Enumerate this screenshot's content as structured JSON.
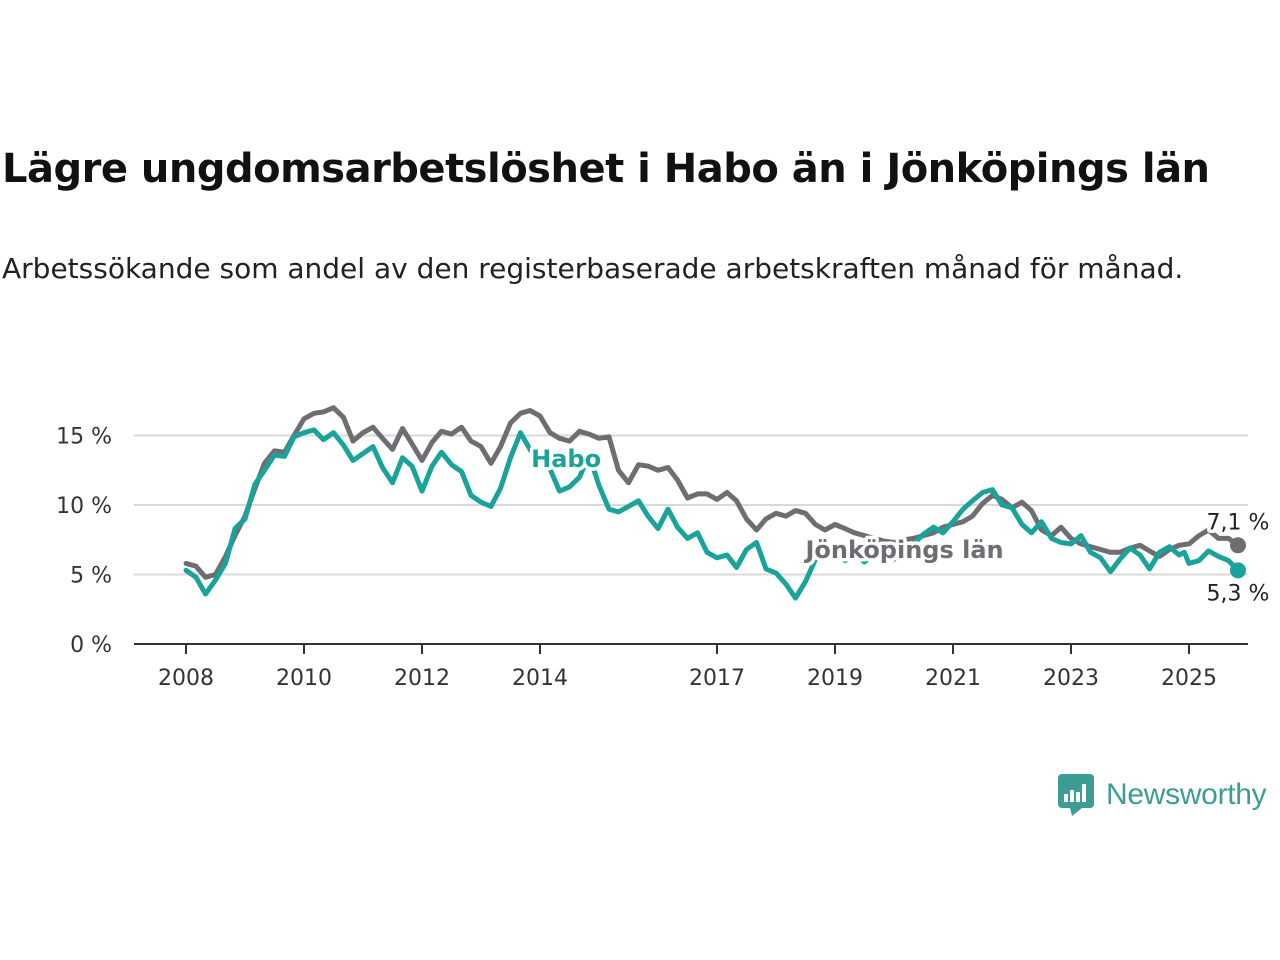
{
  "header": {
    "title": "Lägre ungdomsarbetslöshet i Habo än i Jönköpings län",
    "subtitle": "Arbetssökande som andel av den registerbaserade arbetskraften månad för månad."
  },
  "brand": {
    "name": "Newsworthy",
    "color": "#3d9c94",
    "icon": "newsworthy-logo-icon"
  },
  "chart_data": {
    "type": "line",
    "title": "Lägre ungdomsarbetslöshet i Habo än i Jönköpings län",
    "subtitle": "Arbetssökande som andel av den registerbaserade arbetskraften månad för månad.",
    "xlabel": "",
    "ylabel": "",
    "xlim": [
      2008,
      2025.9
    ],
    "ylim": [
      0,
      17.5
    ],
    "y_ticks": [
      0,
      5,
      10,
      15
    ],
    "y_tick_labels": [
      "0 %",
      "5 %",
      "10 %",
      "15 %"
    ],
    "x_ticks": [
      2008,
      2010,
      2012,
      2014,
      2017,
      2019,
      2021,
      2023,
      2025
    ],
    "x_tick_labels": [
      "2008",
      "2010",
      "2012",
      "2014",
      "2017",
      "2019",
      "2021",
      "2023",
      "2025"
    ],
    "grid": true,
    "legend": "direct labels on lines",
    "series": [
      {
        "name": "Jönköpings län",
        "color": "#6e6d72",
        "end_label": "7,1 %",
        "points": [
          [
            2008.0,
            5.8
          ],
          [
            2008.17,
            5.6
          ],
          [
            2008.33,
            4.8
          ],
          [
            2008.5,
            5.0
          ],
          [
            2008.67,
            6.3
          ],
          [
            2008.83,
            7.8
          ],
          [
            2009.0,
            9.2
          ],
          [
            2009.17,
            11.2
          ],
          [
            2009.33,
            13.0
          ],
          [
            2009.5,
            13.9
          ],
          [
            2009.67,
            13.8
          ],
          [
            2009.83,
            15.0
          ],
          [
            2010.0,
            16.2
          ],
          [
            2010.17,
            16.6
          ],
          [
            2010.33,
            16.7
          ],
          [
            2010.5,
            17.0
          ],
          [
            2010.67,
            16.3
          ],
          [
            2010.83,
            14.6
          ],
          [
            2011.0,
            15.2
          ],
          [
            2011.17,
            15.6
          ],
          [
            2011.33,
            14.8
          ],
          [
            2011.5,
            14.0
          ],
          [
            2011.67,
            15.5
          ],
          [
            2011.83,
            14.4
          ],
          [
            2012.0,
            13.2
          ],
          [
            2012.17,
            14.5
          ],
          [
            2012.33,
            15.3
          ],
          [
            2012.5,
            15.1
          ],
          [
            2012.67,
            15.6
          ],
          [
            2012.83,
            14.6
          ],
          [
            2013.0,
            14.2
          ],
          [
            2013.17,
            13.0
          ],
          [
            2013.33,
            14.2
          ],
          [
            2013.5,
            15.9
          ],
          [
            2013.67,
            16.6
          ],
          [
            2013.83,
            16.8
          ],
          [
            2014.0,
            16.4
          ],
          [
            2014.17,
            15.2
          ],
          [
            2014.33,
            14.8
          ],
          [
            2014.5,
            14.6
          ],
          [
            2014.67,
            15.3
          ],
          [
            2014.83,
            15.1
          ],
          [
            2015.0,
            14.8
          ],
          [
            2015.17,
            14.9
          ],
          [
            2015.33,
            12.5
          ],
          [
            2015.5,
            11.6
          ],
          [
            2015.67,
            12.9
          ],
          [
            2015.83,
            12.8
          ],
          [
            2016.0,
            12.5
          ],
          [
            2016.17,
            12.7
          ],
          [
            2016.33,
            11.8
          ],
          [
            2016.5,
            10.5
          ],
          [
            2016.67,
            10.8
          ],
          [
            2016.83,
            10.8
          ],
          [
            2017.0,
            10.4
          ],
          [
            2017.17,
            10.9
          ],
          [
            2017.33,
            10.3
          ],
          [
            2017.5,
            9.0
          ],
          [
            2017.67,
            8.2
          ],
          [
            2017.83,
            9.0
          ],
          [
            2018.0,
            9.4
          ],
          [
            2018.17,
            9.2
          ],
          [
            2018.33,
            9.6
          ],
          [
            2018.5,
            9.4
          ],
          [
            2018.67,
            8.6
          ],
          [
            2018.83,
            8.2
          ],
          [
            2019.0,
            8.6
          ],
          [
            2019.17,
            8.3
          ],
          [
            2019.33,
            8.0
          ],
          [
            2019.5,
            7.8
          ],
          [
            2019.67,
            7.6
          ],
          [
            2019.83,
            7.4
          ],
          [
            2020.0,
            7.3
          ],
          [
            2020.17,
            7.5
          ],
          [
            2020.33,
            7.6
          ],
          [
            2020.5,
            7.8
          ],
          [
            2020.67,
            8.0
          ],
          [
            2020.83,
            8.4
          ],
          [
            2021.0,
            8.6
          ],
          [
            2021.17,
            8.8
          ],
          [
            2021.33,
            9.2
          ],
          [
            2021.5,
            10.1
          ],
          [
            2021.67,
            10.7
          ],
          [
            2021.83,
            10.4
          ],
          [
            2022.0,
            9.8
          ],
          [
            2022.17,
            10.2
          ],
          [
            2022.33,
            9.6
          ],
          [
            2022.5,
            8.2
          ],
          [
            2022.67,
            7.8
          ],
          [
            2022.83,
            8.4
          ],
          [
            2023.0,
            7.6
          ],
          [
            2023.17,
            7.2
          ],
          [
            2023.33,
            7.0
          ],
          [
            2023.5,
            6.8
          ],
          [
            2023.67,
            6.6
          ],
          [
            2023.83,
            6.6
          ],
          [
            2024.0,
            6.9
          ],
          [
            2024.17,
            7.1
          ],
          [
            2024.33,
            6.7
          ],
          [
            2024.5,
            6.3
          ],
          [
            2024.67,
            6.8
          ],
          [
            2024.83,
            7.1
          ],
          [
            2025.0,
            7.2
          ],
          [
            2025.17,
            7.8
          ],
          [
            2025.33,
            8.2
          ],
          [
            2025.5,
            7.6
          ],
          [
            2025.67,
            7.6
          ],
          [
            2025.83,
            7.1
          ]
        ]
      },
      {
        "name": "Habo",
        "color": "#1aa39a",
        "end_label": "5,3 %",
        "points": [
          [
            2008.0,
            5.3
          ],
          [
            2008.17,
            4.8
          ],
          [
            2008.33,
            3.6
          ],
          [
            2008.5,
            4.6
          ],
          [
            2008.67,
            5.8
          ],
          [
            2008.83,
            8.3
          ],
          [
            2009.0,
            9.0
          ],
          [
            2009.17,
            11.5
          ],
          [
            2009.33,
            12.5
          ],
          [
            2009.5,
            13.6
          ],
          [
            2009.67,
            13.5
          ],
          [
            2009.83,
            14.9
          ],
          [
            2010.0,
            15.2
          ],
          [
            2010.17,
            15.4
          ],
          [
            2010.33,
            14.7
          ],
          [
            2010.5,
            15.2
          ],
          [
            2010.67,
            14.3
          ],
          [
            2010.83,
            13.2
          ],
          [
            2011.0,
            13.7
          ],
          [
            2011.17,
            14.2
          ],
          [
            2011.33,
            12.7
          ],
          [
            2011.5,
            11.6
          ],
          [
            2011.67,
            13.4
          ],
          [
            2011.83,
            12.8
          ],
          [
            2012.0,
            11.0
          ],
          [
            2012.17,
            12.8
          ],
          [
            2012.33,
            13.8
          ],
          [
            2012.5,
            12.9
          ],
          [
            2012.67,
            12.4
          ],
          [
            2012.83,
            10.7
          ],
          [
            2013.0,
            10.2
          ],
          [
            2013.17,
            9.9
          ],
          [
            2013.33,
            11.2
          ],
          [
            2013.5,
            13.4
          ],
          [
            2013.67,
            15.2
          ],
          [
            2013.83,
            14.0
          ],
          [
            2014.0,
            13.0
          ],
          [
            2014.17,
            12.6
          ],
          [
            2014.33,
            11.0
          ],
          [
            2014.5,
            11.3
          ],
          [
            2014.67,
            12.0
          ],
          [
            2014.83,
            13.6
          ],
          [
            2015.0,
            11.4
          ],
          [
            2015.17,
            9.7
          ],
          [
            2015.33,
            9.5
          ],
          [
            2015.5,
            9.9
          ],
          [
            2015.67,
            10.3
          ],
          [
            2015.83,
            9.2
          ],
          [
            2016.0,
            8.3
          ],
          [
            2016.17,
            9.7
          ],
          [
            2016.33,
            8.4
          ],
          [
            2016.5,
            7.6
          ],
          [
            2016.67,
            8.0
          ],
          [
            2016.83,
            6.6
          ],
          [
            2017.0,
            6.2
          ],
          [
            2017.17,
            6.4
          ],
          [
            2017.33,
            5.5
          ],
          [
            2017.5,
            6.8
          ],
          [
            2017.67,
            7.3
          ],
          [
            2017.83,
            5.4
          ],
          [
            2018.0,
            5.1
          ],
          [
            2018.17,
            4.3
          ],
          [
            2018.33,
            3.3
          ],
          [
            2018.5,
            4.5
          ],
          [
            2018.67,
            6.1
          ],
          [
            2018.83,
            7.2
          ],
          [
            2019.0,
            6.6
          ],
          [
            2019.17,
            6.0
          ],
          [
            2019.33,
            6.5
          ],
          [
            2019.5,
            5.9
          ],
          [
            2019.67,
            6.6
          ],
          [
            2019.83,
            7.0
          ],
          [
            2020.0,
            6.1
          ],
          [
            2020.17,
            6.7
          ],
          [
            2020.33,
            7.2
          ],
          [
            2020.5,
            7.9
          ],
          [
            2020.67,
            8.4
          ],
          [
            2020.83,
            8.0
          ],
          [
            2021.0,
            8.8
          ],
          [
            2021.17,
            9.7
          ],
          [
            2021.33,
            10.3
          ],
          [
            2021.5,
            10.9
          ],
          [
            2021.67,
            11.1
          ],
          [
            2021.83,
            10.0
          ],
          [
            2022.0,
            9.8
          ],
          [
            2022.17,
            8.6
          ],
          [
            2022.33,
            8.0
          ],
          [
            2022.5,
            8.8
          ],
          [
            2022.67,
            7.6
          ],
          [
            2022.83,
            7.3
          ],
          [
            2023.0,
            7.2
          ],
          [
            2023.17,
            7.8
          ],
          [
            2023.33,
            6.6
          ],
          [
            2023.5,
            6.2
          ],
          [
            2023.67,
            5.2
          ],
          [
            2023.83,
            6.1
          ],
          [
            2024.0,
            6.9
          ],
          [
            2024.17,
            6.4
          ],
          [
            2024.33,
            5.4
          ],
          [
            2024.5,
            6.6
          ],
          [
            2024.67,
            7.0
          ],
          [
            2024.83,
            6.4
          ],
          [
            2024.92,
            6.6
          ],
          [
            2025.0,
            5.8
          ],
          [
            2025.17,
            6.0
          ],
          [
            2025.33,
            6.7
          ],
          [
            2025.5,
            6.3
          ],
          [
            2025.67,
            6.0
          ],
          [
            2025.83,
            5.3
          ]
        ]
      }
    ]
  }
}
